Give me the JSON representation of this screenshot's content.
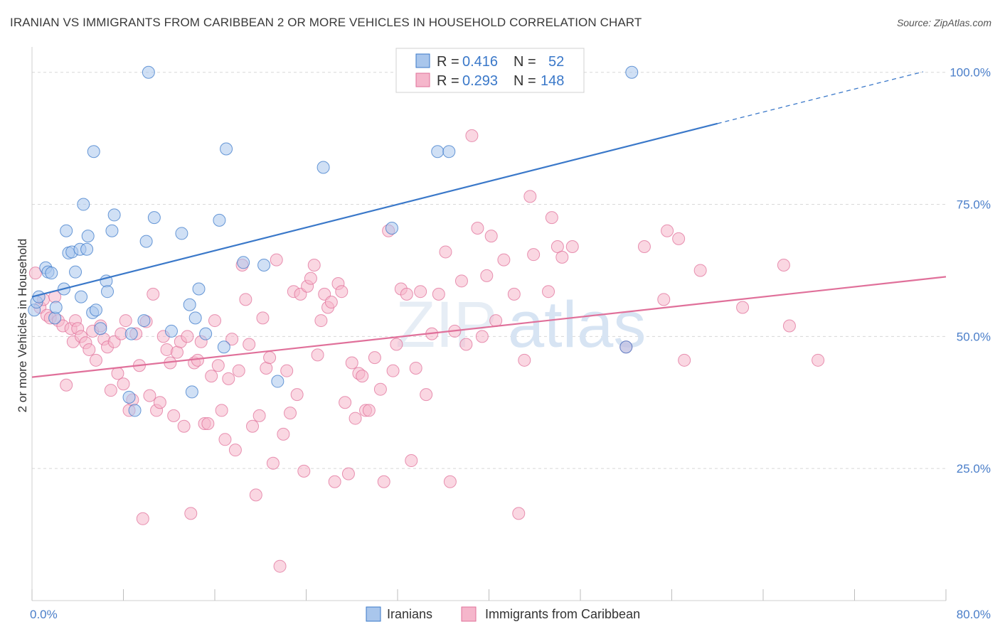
{
  "title": "IRANIAN VS IMMIGRANTS FROM CARIBBEAN 2 OR MORE VEHICLES IN HOUSEHOLD CORRELATION CHART",
  "source": "Source: ZipAtlas.com",
  "watermark": {
    "zip": "ZIP",
    "atlas": "atlas"
  },
  "colors": {
    "blue": "#3a78c9",
    "blue_fill": "#a9c6ec",
    "pink": "#e0709a",
    "pink_fill": "#f5b6cb",
    "axis_label": "#4a7ec9",
    "grid": "#d8d8d8"
  },
  "stats": [
    {
      "r_label": "R = ",
      "r_value": "0.416",
      "n_label": "N = ",
      "n_value": "52"
    },
    {
      "r_label": "R = ",
      "r_value": "0.293",
      "n_label": "N = ",
      "n_value": "148"
    }
  ],
  "chart_data": {
    "type": "scatter",
    "xlabel": "",
    "ylabel": "2 or more Vehicles in Household",
    "xlim": [
      0,
      80
    ],
    "ylim": [
      0,
      104
    ],
    "x_ticks": [
      0,
      8,
      16,
      24,
      32,
      40,
      48,
      56,
      64,
      72,
      80
    ],
    "x_tick_labels": [
      {
        "value": 0,
        "label": "0.0%"
      },
      {
        "value": 80,
        "label": "80.0%"
      }
    ],
    "y_tick_labels": [
      {
        "value": 25,
        "label": "25.0%"
      },
      {
        "value": 50,
        "label": "50.0%"
      },
      {
        "value": 75,
        "label": "75.0%"
      },
      {
        "value": 100,
        "label": "100.0%"
      }
    ],
    "grid": "horizontal-dashed",
    "legend": "bottom-center",
    "series": [
      {
        "name": "Iranians",
        "color": "#3a78c9",
        "trend": {
          "x0": 0,
          "y0": 57.5,
          "x1": 60,
          "y1": 90.3,
          "dash_to_x": 78,
          "dash_to_y": 100.1
        },
        "points": [
          [
            0.2,
            55.0
          ],
          [
            0.4,
            56.5
          ],
          [
            0.6,
            57.5
          ],
          [
            1.2,
            63.0
          ],
          [
            1.4,
            62.2
          ],
          [
            1.7,
            62.0
          ],
          [
            2.0,
            53.5
          ],
          [
            2.1,
            55.5
          ],
          [
            2.8,
            59.0
          ],
          [
            3.0,
            70.0
          ],
          [
            3.2,
            65.8
          ],
          [
            3.8,
            62.2
          ],
          [
            3.5,
            66.0
          ],
          [
            4.2,
            66.5
          ],
          [
            4.3,
            57.5
          ],
          [
            4.5,
            75.0
          ],
          [
            4.8,
            66.5
          ],
          [
            4.9,
            69.0
          ],
          [
            5.3,
            54.5
          ],
          [
            5.4,
            85.0
          ],
          [
            5.6,
            55.0
          ],
          [
            6.0,
            51.5
          ],
          [
            6.5,
            60.5
          ],
          [
            6.6,
            58.5
          ],
          [
            7.0,
            70.0
          ],
          [
            7.2,
            73.0
          ],
          [
            8.5,
            38.5
          ],
          [
            8.7,
            50.5
          ],
          [
            9.0,
            36.0
          ],
          [
            9.8,
            53.0
          ],
          [
            10.0,
            68.0
          ],
          [
            10.2,
            100.0
          ],
          [
            10.7,
            72.5
          ],
          [
            12.2,
            51.0
          ],
          [
            13.1,
            69.5
          ],
          [
            13.8,
            56.0
          ],
          [
            14.0,
            39.5
          ],
          [
            14.3,
            53.5
          ],
          [
            14.6,
            59.0
          ],
          [
            15.2,
            50.5
          ],
          [
            16.4,
            72.0
          ],
          [
            16.8,
            48.0
          ],
          [
            17.0,
            85.5
          ],
          [
            18.5,
            64.0
          ],
          [
            20.3,
            63.5
          ],
          [
            21.5,
            41.5
          ],
          [
            25.5,
            82.0
          ],
          [
            31.5,
            70.5
          ],
          [
            35.5,
            85.0
          ],
          [
            36.5,
            85.0
          ],
          [
            52.0,
            48.0
          ],
          [
            52.5,
            100.0
          ]
        ]
      },
      {
        "name": "Immigrants from Caribbean",
        "color": "#e0709a",
        "trend": {
          "x0": 0,
          "y0": 42.3,
          "x1": 80,
          "y1": 61.3
        },
        "points": [
          [
            0.3,
            62.0
          ],
          [
            0.7,
            55.5
          ],
          [
            1.0,
            57.0
          ],
          [
            1.3,
            54.0
          ],
          [
            1.6,
            53.5
          ],
          [
            2.0,
            57.5
          ],
          [
            2.3,
            53.0
          ],
          [
            2.7,
            52.0
          ],
          [
            3.0,
            40.8
          ],
          [
            3.4,
            51.5
          ],
          [
            3.6,
            49.0
          ],
          [
            3.8,
            53.0
          ],
          [
            4.0,
            51.5
          ],
          [
            4.3,
            50.0
          ],
          [
            4.7,
            48.8
          ],
          [
            5.0,
            47.5
          ],
          [
            5.3,
            51.0
          ],
          [
            5.6,
            45.5
          ],
          [
            6.0,
            52.0
          ],
          [
            6.3,
            49.5
          ],
          [
            6.6,
            48.0
          ],
          [
            6.9,
            39.8
          ],
          [
            7.2,
            49.0
          ],
          [
            7.5,
            43.0
          ],
          [
            7.8,
            50.5
          ],
          [
            8.0,
            41.0
          ],
          [
            8.2,
            53.0
          ],
          [
            8.5,
            36.0
          ],
          [
            8.8,
            38.0
          ],
          [
            9.1,
            50.5
          ],
          [
            9.4,
            44.5
          ],
          [
            9.7,
            15.5
          ],
          [
            10.0,
            52.8
          ],
          [
            10.3,
            38.8
          ],
          [
            10.6,
            58.0
          ],
          [
            10.9,
            36.0
          ],
          [
            11.2,
            37.5
          ],
          [
            11.5,
            50.0
          ],
          [
            11.8,
            47.5
          ],
          [
            12.1,
            45.0
          ],
          [
            12.4,
            35.0
          ],
          [
            12.7,
            47.0
          ],
          [
            13.0,
            49.0
          ],
          [
            13.3,
            33.0
          ],
          [
            13.6,
            50.0
          ],
          [
            13.9,
            16.5
          ],
          [
            14.2,
            45.0
          ],
          [
            14.5,
            45.5
          ],
          [
            14.8,
            49.0
          ],
          [
            15.1,
            33.5
          ],
          [
            15.4,
            33.5
          ],
          [
            15.7,
            42.5
          ],
          [
            16.0,
            53.0
          ],
          [
            16.3,
            44.5
          ],
          [
            16.6,
            36.0
          ],
          [
            16.9,
            30.5
          ],
          [
            17.2,
            42.0
          ],
          [
            17.5,
            49.5
          ],
          [
            17.8,
            28.5
          ],
          [
            18.1,
            43.5
          ],
          [
            18.4,
            63.5
          ],
          [
            18.7,
            57.0
          ],
          [
            19.0,
            48.5
          ],
          [
            19.3,
            33.0
          ],
          [
            19.6,
            20.0
          ],
          [
            19.9,
            35.0
          ],
          [
            20.2,
            53.5
          ],
          [
            20.5,
            44.0
          ],
          [
            20.8,
            46.0
          ],
          [
            21.1,
            26.0
          ],
          [
            21.4,
            64.5
          ],
          [
            21.7,
            6.5
          ],
          [
            22.0,
            31.5
          ],
          [
            22.3,
            43.5
          ],
          [
            22.6,
            35.5
          ],
          [
            22.9,
            58.5
          ],
          [
            23.2,
            39.0
          ],
          [
            23.5,
            58.0
          ],
          [
            23.8,
            24.5
          ],
          [
            24.1,
            59.5
          ],
          [
            24.4,
            61.0
          ],
          [
            24.7,
            63.5
          ],
          [
            25.0,
            46.5
          ],
          [
            25.3,
            53.0
          ],
          [
            25.6,
            58.0
          ],
          [
            25.9,
            55.5
          ],
          [
            26.2,
            56.5
          ],
          [
            26.5,
            22.5
          ],
          [
            26.8,
            60.0
          ],
          [
            27.1,
            58.5
          ],
          [
            27.4,
            37.5
          ],
          [
            27.7,
            24.0
          ],
          [
            28.0,
            45.0
          ],
          [
            28.3,
            34.5
          ],
          [
            28.6,
            43.0
          ],
          [
            28.9,
            42.5
          ],
          [
            29.2,
            36.0
          ],
          [
            29.5,
            36.0
          ],
          [
            30.0,
            46.0
          ],
          [
            30.5,
            40.0
          ],
          [
            30.8,
            22.5
          ],
          [
            31.2,
            70.0
          ],
          [
            31.6,
            43.5
          ],
          [
            31.9,
            48.5
          ],
          [
            32.3,
            59.0
          ],
          [
            32.8,
            58.0
          ],
          [
            33.2,
            26.5
          ],
          [
            33.6,
            44.0
          ],
          [
            34.0,
            58.5
          ],
          [
            34.5,
            39.0
          ],
          [
            35.0,
            50.5
          ],
          [
            35.6,
            58.0
          ],
          [
            36.2,
            66.0
          ],
          [
            36.6,
            22.5
          ],
          [
            37.0,
            51.0
          ],
          [
            37.6,
            60.5
          ],
          [
            38.0,
            48.5
          ],
          [
            38.5,
            88.0
          ],
          [
            39.0,
            70.5
          ],
          [
            39.4,
            50.0
          ],
          [
            39.8,
            61.5
          ],
          [
            40.2,
            69.0
          ],
          [
            40.6,
            53.0
          ],
          [
            41.3,
            64.5
          ],
          [
            42.2,
            58.0
          ],
          [
            42.6,
            16.5
          ],
          [
            43.1,
            45.5
          ],
          [
            43.6,
            76.5
          ],
          [
            43.9,
            65.5
          ],
          [
            45.2,
            58.5
          ],
          [
            45.5,
            72.5
          ],
          [
            46.0,
            67.0
          ],
          [
            46.4,
            65.0
          ],
          [
            47.3,
            67.0
          ],
          [
            52.0,
            48.0
          ],
          [
            53.6,
            67.0
          ],
          [
            55.3,
            57.0
          ],
          [
            55.6,
            70.0
          ],
          [
            56.6,
            68.5
          ],
          [
            57.1,
            45.5
          ],
          [
            58.5,
            62.5
          ],
          [
            62.2,
            55.5
          ],
          [
            65.8,
            63.5
          ],
          [
            66.3,
            52.0
          ],
          [
            68.8,
            45.5
          ]
        ]
      }
    ]
  }
}
